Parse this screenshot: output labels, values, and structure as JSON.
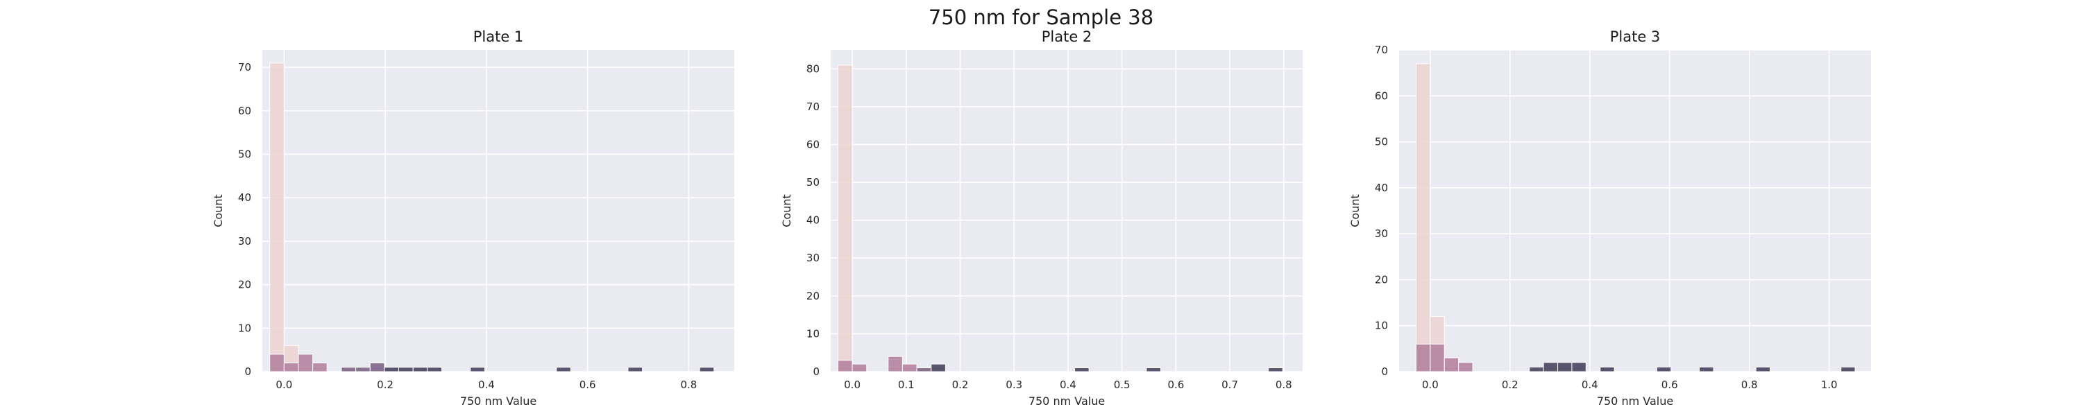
{
  "figure": {
    "title": "750 nm for Sample 38"
  },
  "chart_data": [
    {
      "type": "bar",
      "title": "Plate 1",
      "xlabel": "750 nm Value",
      "ylabel": "Count",
      "xlim": [
        -0.043,
        0.89
      ],
      "ylim": [
        0,
        74
      ],
      "xticks": [
        0.0,
        0.2,
        0.4,
        0.6,
        0.8
      ],
      "xtick_labels": [
        "0.0",
        "0.2",
        "0.4",
        "0.6",
        "0.8"
      ],
      "yticks": [
        0,
        10,
        20,
        30,
        40,
        50,
        60,
        70
      ],
      "ytick_labels": [
        "0",
        "10",
        "20",
        "30",
        "40",
        "50",
        "60",
        "70"
      ],
      "bin_width": 0.0283,
      "grid": true,
      "series": [
        {
          "color": "#ecd3d1",
          "x": [
            -0.0142,
            0.0142
          ],
          "values": [
            71,
            6
          ]
        },
        {
          "color": "#b583a0",
          "x": [
            -0.0142,
            0.0142,
            0.0425,
            0.0708
          ],
          "values": [
            4,
            2,
            4,
            2
          ]
        },
        {
          "color": "#806586",
          "x": [
            0.1275,
            0.1558,
            0.1842
          ],
          "values": [
            1,
            1,
            2
          ]
        },
        {
          "color": "#4a4561",
          "x": [
            0.2125,
            0.2408,
            0.2692,
            0.2975,
            0.3825,
            0.5525,
            0.6942,
            0.8358
          ],
          "values": [
            1,
            1,
            1,
            1,
            1,
            1,
            1,
            1
          ]
        }
      ]
    },
    {
      "type": "bar",
      "title": "Plate 2",
      "xlabel": "750 nm Value",
      "ylabel": "Count",
      "xlim": [
        -0.04,
        0.835
      ],
      "ylim": [
        0,
        85
      ],
      "xticks": [
        0.0,
        0.1,
        0.2,
        0.3,
        0.4,
        0.5,
        0.6,
        0.7,
        0.8
      ],
      "xtick_labels": [
        "0.0",
        "0.1",
        "0.2",
        "0.3",
        "0.4",
        "0.5",
        "0.6",
        "0.7",
        "0.8"
      ],
      "yticks": [
        0,
        10,
        20,
        30,
        40,
        50,
        60,
        70,
        80
      ],
      "ytick_labels": [
        "0",
        "10",
        "20",
        "30",
        "40",
        "50",
        "60",
        "70",
        "80"
      ],
      "bin_width": 0.0266,
      "grid": true,
      "series": [
        {
          "color": "#ecd3d1",
          "x": [
            -0.0133,
            0.0133
          ],
          "values": [
            81,
            1
          ]
        },
        {
          "color": "#b583a0",
          "x": [
            -0.0133,
            0.0133,
            0.0798,
            0.1064
          ],
          "values": [
            3,
            2,
            4,
            2
          ]
        },
        {
          "color": "#806586",
          "x": [
            0.133
          ],
          "values": [
            1
          ]
        },
        {
          "color": "#4a4561",
          "x": [
            0.1596,
            0.4256,
            0.5586,
            0.7847
          ],
          "values": [
            2,
            1,
            1,
            1
          ]
        }
      ]
    },
    {
      "type": "bar",
      "title": "Plate 3",
      "xlabel": "750 nm Value",
      "ylabel": "Count",
      "xlim": [
        -0.078,
        1.105
      ],
      "ylim": [
        0,
        70
      ],
      "xticks": [
        0.0,
        0.2,
        0.4,
        0.6,
        0.8,
        1.0
      ],
      "xtick_labels": [
        "0.0",
        "0.2",
        "0.4",
        "0.6",
        "0.8",
        "1.0"
      ],
      "yticks": [
        0,
        10,
        20,
        30,
        40,
        50,
        60,
        70
      ],
      "ytick_labels": [
        "0",
        "10",
        "20",
        "30",
        "40",
        "50",
        "60",
        "70"
      ],
      "bin_width": 0.0355,
      "grid": true,
      "series": [
        {
          "color": "#ecd3d1",
          "x": [
            -0.0178,
            0.0178
          ],
          "values": [
            67,
            12
          ]
        },
        {
          "color": "#b583a0",
          "x": [
            -0.0178,
            0.0178,
            0.0533,
            0.0888
          ],
          "values": [
            6,
            6,
            3,
            2
          ]
        },
        {
          "color": "#4a4561",
          "x": [
            0.2663,
            0.3018,
            0.3373,
            0.3728,
            0.4438,
            0.5858,
            0.6923,
            0.8343,
            1.0473
          ],
          "values": [
            1,
            2,
            2,
            2,
            1,
            1,
            1,
            1,
            1
          ]
        }
      ]
    }
  ]
}
